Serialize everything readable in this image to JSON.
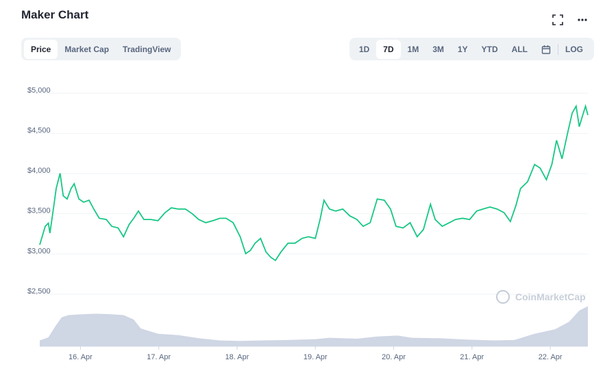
{
  "header": {
    "title": "Maker Chart",
    "tabs": [
      "Price",
      "Market Cap",
      "TradingView"
    ],
    "active_tab": 0,
    "ranges": [
      "1D",
      "7D",
      "1M",
      "3M",
      "1Y",
      "YTD",
      "ALL"
    ],
    "active_range": 1,
    "log_button": "LOG"
  },
  "chart_data": {
    "type": "line",
    "watermark": "CoinMarketCap",
    "xlim": [
      15.48,
      22.48
    ],
    "xticks": [
      {
        "value": 16,
        "label": "16. Apr"
      },
      {
        "value": 17,
        "label": "17. Apr"
      },
      {
        "value": 18,
        "label": "18. Apr"
      },
      {
        "value": 19,
        "label": "19. Apr"
      },
      {
        "value": 20,
        "label": "20. Apr"
      },
      {
        "value": 21,
        "label": "21. Apr"
      },
      {
        "value": 22,
        "label": "22. Apr"
      }
    ],
    "ylim": [
      2500,
      5000
    ],
    "yticks": [
      {
        "value": 2500,
        "label": "$2,500"
      },
      {
        "value": 3000,
        "label": "$3,000"
      },
      {
        "value": 3500,
        "label": "$3,500"
      },
      {
        "value": 4000,
        "label": "$4,000"
      },
      {
        "value": 4500,
        "label": "$4,500"
      },
      {
        "value": 5000,
        "label": "$5,000"
      }
    ],
    "y2lim": [
      0,
      100
    ],
    "grid": true,
    "series": [
      {
        "color": "#16c784",
        "x": [
          15.48,
          15.55,
          15.59,
          15.61,
          15.66,
          15.69,
          15.74,
          15.78,
          15.83,
          15.88,
          15.92,
          15.98,
          16.04,
          16.11,
          16.17,
          16.24,
          16.33,
          16.4,
          16.48,
          16.55,
          16.62,
          16.68,
          16.74,
          16.81,
          16.9,
          16.99,
          17.08,
          17.16,
          17.25,
          17.34,
          17.43,
          17.51,
          17.6,
          17.69,
          17.78,
          17.86,
          17.95,
          18.04,
          18.11,
          18.17,
          18.23,
          18.3,
          18.37,
          18.43,
          18.49,
          18.56,
          18.65,
          18.74,
          18.83,
          18.91,
          19.0,
          19.06,
          19.11,
          19.18,
          19.26,
          19.35,
          19.44,
          19.53,
          19.61,
          19.7,
          19.79,
          19.88,
          19.96,
          20.03,
          20.12,
          20.21,
          20.3,
          20.38,
          20.47,
          20.53,
          20.62,
          20.71,
          20.79,
          20.88,
          20.97,
          21.06,
          21.14,
          21.23,
          21.32,
          21.41,
          21.49,
          21.56,
          21.62,
          21.71,
          21.8,
          21.87,
          21.95,
          22.02,
          22.08,
          22.15,
          22.22,
          22.28,
          22.33,
          22.37,
          22.41,
          22.45,
          22.48
        ],
        "values": [
          3080,
          3310,
          3350,
          3225,
          3565,
          3780,
          3970,
          3690,
          3650,
          3780,
          3840,
          3650,
          3610,
          3635,
          3525,
          3410,
          3395,
          3310,
          3290,
          3180,
          3330,
          3410,
          3500,
          3395,
          3395,
          3380,
          3480,
          3540,
          3525,
          3525,
          3465,
          3395,
          3355,
          3380,
          3410,
          3410,
          3355,
          3180,
          2970,
          3010,
          3100,
          3160,
          2990,
          2925,
          2885,
          2990,
          3100,
          3100,
          3160,
          3180,
          3160,
          3395,
          3635,
          3525,
          3500,
          3525,
          3440,
          3395,
          3310,
          3355,
          3650,
          3635,
          3525,
          3310,
          3290,
          3355,
          3180,
          3270,
          3585,
          3395,
          3310,
          3355,
          3395,
          3410,
          3395,
          3500,
          3525,
          3550,
          3525,
          3480,
          3370,
          3565,
          3780,
          3865,
          4080,
          4035,
          3890,
          4080,
          4380,
          4150,
          4465,
          4720,
          4805,
          4550,
          4680,
          4805,
          4695
        ]
      },
      {
        "color": "#cfd6e4",
        "axis": "y2",
        "x": [
          15.48,
          15.59,
          15.68,
          15.76,
          15.85,
          16.03,
          16.2,
          16.38,
          16.55,
          16.68,
          16.77,
          16.99,
          17.25,
          17.51,
          17.78,
          18.04,
          18.3,
          18.65,
          19.0,
          19.18,
          19.53,
          19.79,
          20.05,
          20.23,
          20.58,
          20.93,
          21.28,
          21.54,
          21.8,
          22.06,
          22.24,
          22.37,
          22.48
        ],
        "values": [
          13,
          20,
          45,
          65,
          70,
          72,
          73,
          72,
          70,
          60,
          40,
          28,
          25,
          18,
          13,
          12,
          13,
          14,
          16,
          19,
          17,
          22,
          24,
          19,
          18,
          15,
          13,
          14,
          28,
          38,
          55,
          80,
          90
        ]
      }
    ]
  }
}
